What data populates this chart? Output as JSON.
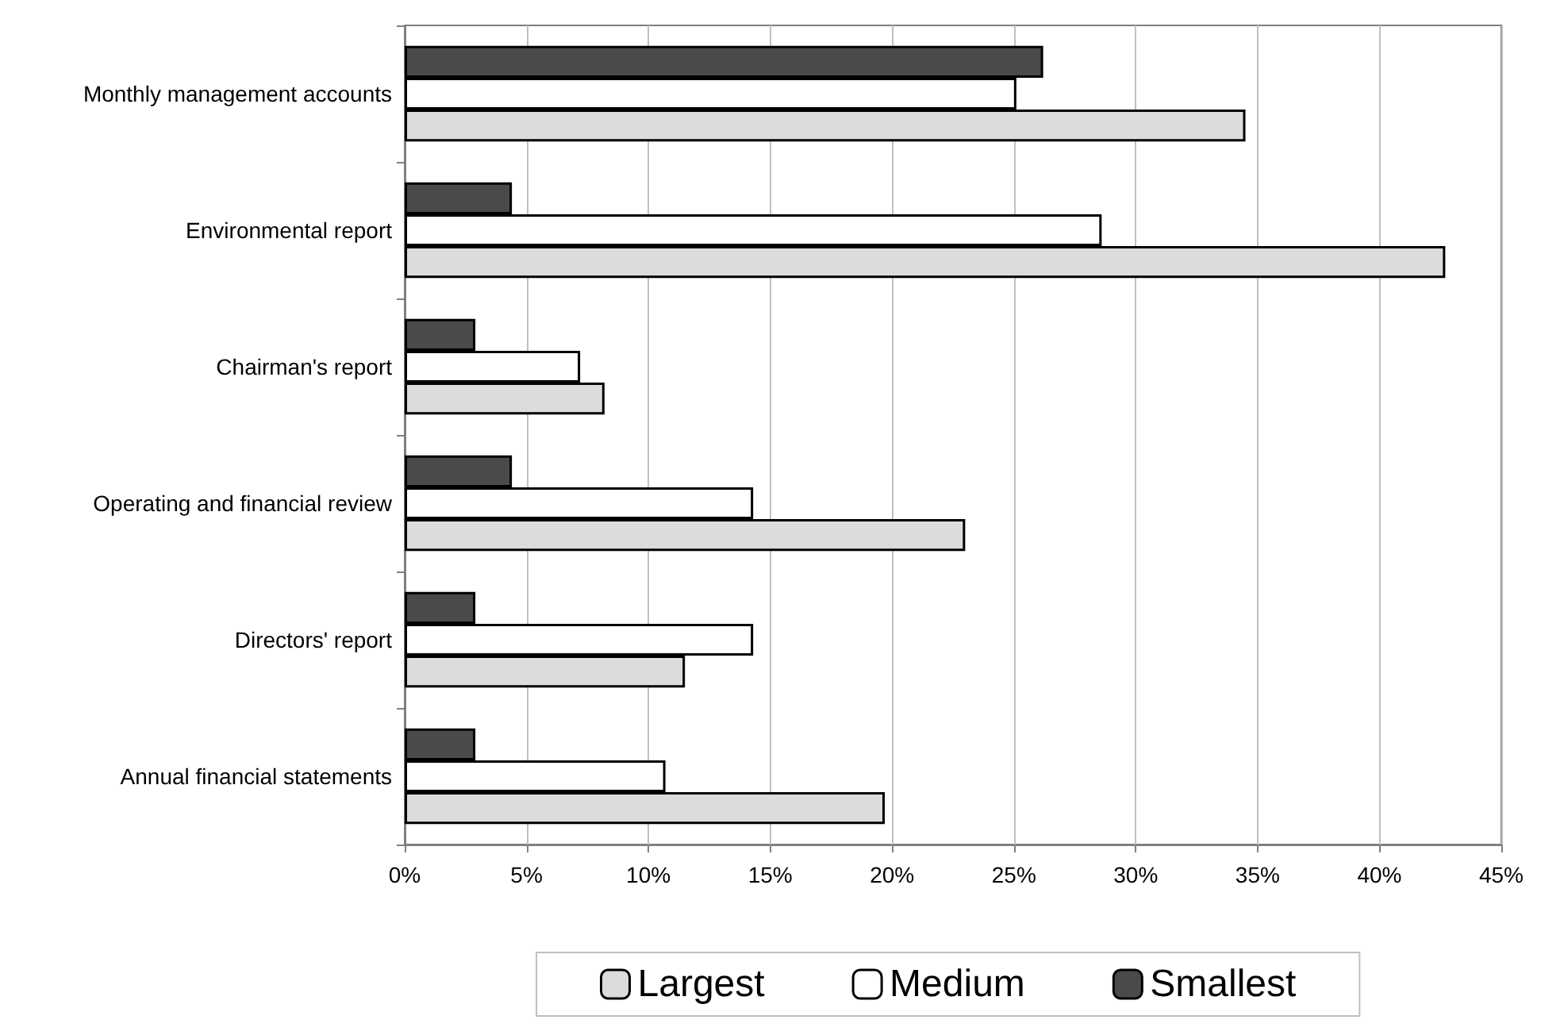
{
  "chart_data": {
    "type": "bar",
    "orientation": "horizontal",
    "categories": [
      "Monthly management accounts",
      "Environmental report",
      "Chairman's report",
      "Operating and financial review",
      "Directors' report",
      "Annual financial statements"
    ],
    "series": [
      {
        "name": "Largest",
        "color": "#dcdcdc",
        "values": [
          34.5,
          42.7,
          8.2,
          23.0,
          11.5,
          19.7
        ]
      },
      {
        "name": "Medium",
        "color": "#ffffff",
        "values": [
          25.1,
          28.6,
          7.2,
          14.3,
          14.3,
          10.7
        ]
      },
      {
        "name": "Smallest",
        "color": "#4a4a4a",
        "values": [
          26.2,
          4.4,
          2.9,
          4.4,
          2.9,
          2.9
        ]
      }
    ],
    "xlim": [
      0,
      45
    ],
    "xticks": [
      {
        "value": 0,
        "label": "0%"
      },
      {
        "value": 5,
        "label": "5%"
      },
      {
        "value": 10,
        "label": "10%"
      },
      {
        "value": 15,
        "label": "15%"
      },
      {
        "value": 20,
        "label": "20%"
      },
      {
        "value": 25,
        "label": "25%"
      },
      {
        "value": 30,
        "label": "30%"
      },
      {
        "value": 35,
        "label": "35%"
      },
      {
        "value": 40,
        "label": "40%"
      },
      {
        "value": 45,
        "label": "45%"
      }
    ],
    "grid": "x",
    "legend": "bottom"
  }
}
